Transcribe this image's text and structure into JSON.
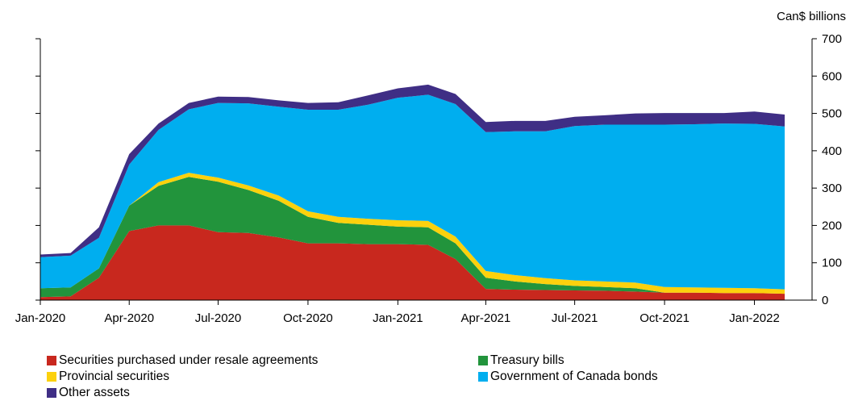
{
  "chart_data": {
    "type": "area",
    "stacked": true,
    "unit_label": "Can$ billions",
    "y_axis_side": "right",
    "ylim": [
      0,
      700
    ],
    "yticks": [
      0,
      100,
      200,
      300,
      400,
      500,
      600,
      700
    ],
    "xlim": [
      "2020-01-01",
      "2022-03-01"
    ],
    "xticks": [
      "Jan-2020",
      "Apr-2020",
      "Jul-2020",
      "Oct-2020",
      "Jan-2021",
      "Apr-2021",
      "Jul-2021",
      "Oct-2021",
      "Jan-2022"
    ],
    "x": [
      "2020-01-01",
      "2020-02-01",
      "2020-03-01",
      "2020-04-01",
      "2020-05-01",
      "2020-06-01",
      "2020-07-01",
      "2020-08-01",
      "2020-09-01",
      "2020-10-01",
      "2020-11-01",
      "2020-12-01",
      "2021-01-01",
      "2021-02-01",
      "2021-03-01",
      "2021-04-01",
      "2021-05-01",
      "2021-06-01",
      "2021-07-01",
      "2021-08-01",
      "2021-09-01",
      "2021-10-01",
      "2021-11-01",
      "2021-12-01",
      "2022-01-01",
      "2022-02-01"
    ],
    "series": [
      {
        "name": "Securities purchased under resale agreements",
        "color": "#c8281e",
        "values": [
          8,
          10,
          60,
          185,
          200,
          200,
          182,
          180,
          168,
          152,
          152,
          150,
          150,
          148,
          110,
          30,
          28,
          27,
          26,
          25,
          23,
          20,
          20,
          19,
          19,
          17
        ]
      },
      {
        "name": "Treasury bills",
        "color": "#22943c",
        "values": [
          24,
          24,
          25,
          68,
          106,
          130,
          135,
          115,
          98,
          71,
          55,
          52,
          47,
          47,
          42,
          30,
          22,
          16,
          12,
          10,
          9,
          0,
          0,
          0,
          0,
          0
        ]
      },
      {
        "name": "Provincial securities",
        "color": "#fcd10d",
        "values": [
          0,
          0,
          0,
          0,
          10,
          11,
          11,
          12,
          14,
          15,
          16,
          16,
          17,
          17,
          18,
          18,
          17,
          16,
          15,
          15,
          15,
          15,
          14,
          14,
          13,
          12
        ]
      },
      {
        "name": "Government of Canada bonds",
        "color": "#00aeef",
        "values": [
          83,
          85,
          82,
          110,
          140,
          170,
          200,
          220,
          238,
          272,
          287,
          305,
          328,
          338,
          355,
          372,
          385,
          393,
          413,
          420,
          423,
          435,
          437,
          440,
          440,
          436
        ]
      },
      {
        "name": "Other assets",
        "color": "#3f2e85",
        "values": [
          7,
          7,
          28,
          28,
          17,
          17,
          17,
          17,
          17,
          18,
          20,
          25,
          25,
          27,
          27,
          27,
          28,
          28,
          25,
          25,
          30,
          31,
          30,
          28,
          33,
          32
        ]
      }
    ]
  }
}
